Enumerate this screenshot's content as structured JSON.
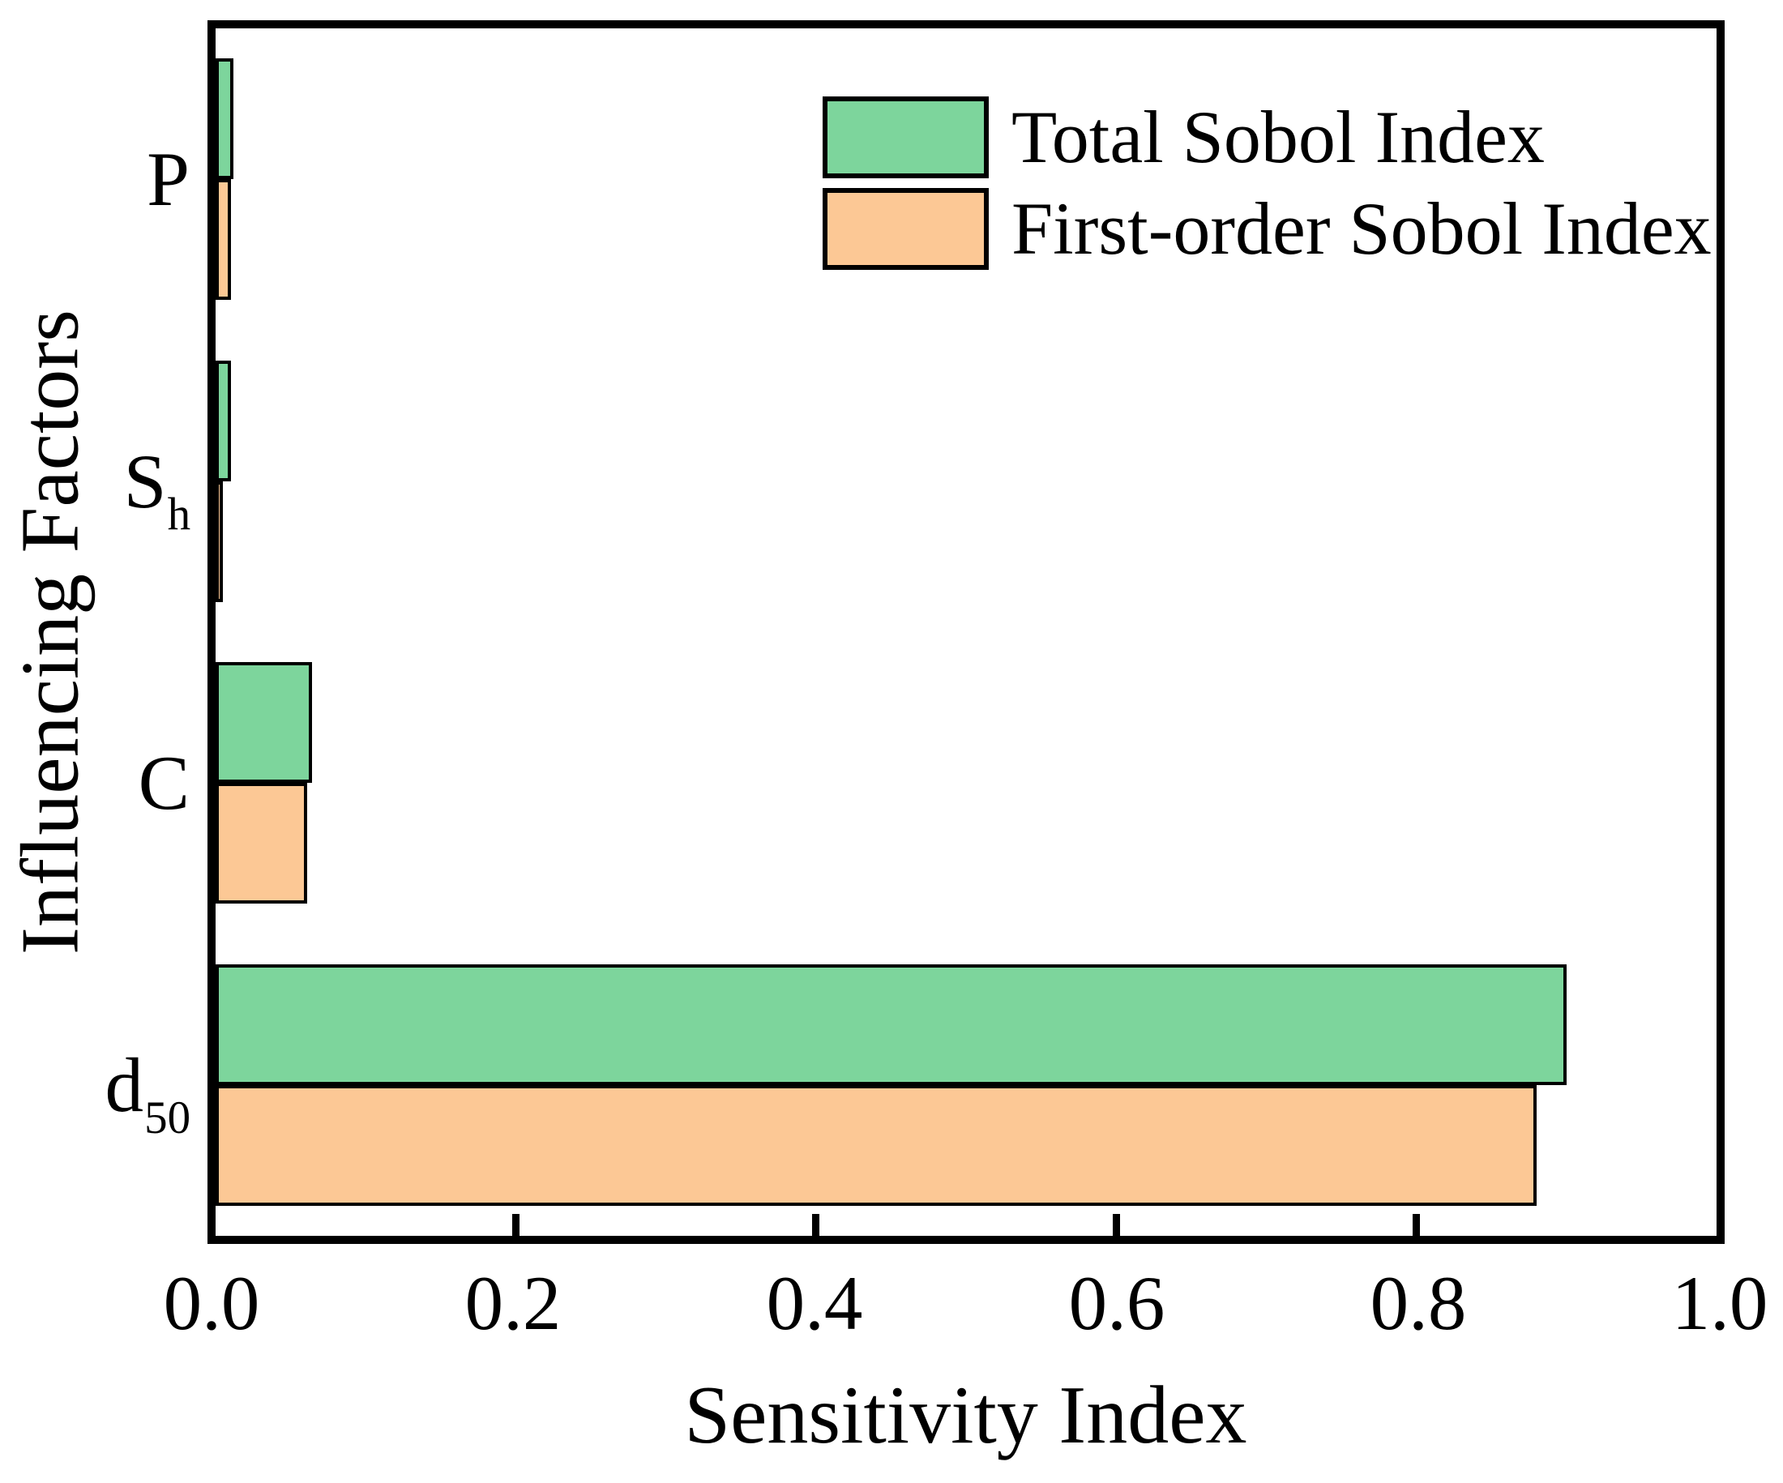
{
  "chart_data": {
    "type": "bar",
    "orientation": "horizontal",
    "title": "",
    "xlabel": "Sensitivity Index",
    "ylabel": "Influencing Factors",
    "xlim": [
      0.0,
      1.0
    ],
    "x_ticks": [
      0.0,
      0.2,
      0.4,
      0.6,
      0.8,
      1.0
    ],
    "x_tick_labels": [
      "0.0",
      "0.2",
      "0.4",
      "0.6",
      "0.8",
      "1.0"
    ],
    "grid": false,
    "legend_position": "upper-center inside",
    "categories": [
      "P",
      "Sh",
      "C",
      "d50"
    ],
    "categories_rich": [
      {
        "label": "P",
        "sub": ""
      },
      {
        "label": "S",
        "sub": "h"
      },
      {
        "label": "C",
        "sub": ""
      },
      {
        "label": "d",
        "sub": "50"
      }
    ],
    "series": [
      {
        "name": "Total Sobol Index",
        "color": "#7DD59C",
        "edge_color": "#000000",
        "values": [
          0.012,
          0.01,
          0.064,
          0.9
        ]
      },
      {
        "name": "First-order Sobol Index",
        "color": "#FCC895",
        "edge_color": "#000000",
        "values": [
          0.01,
          0.005,
          0.061,
          0.88
        ]
      }
    ]
  },
  "colors": {
    "frame": "#000000",
    "background": "#ffffff",
    "text": "#000000"
  }
}
